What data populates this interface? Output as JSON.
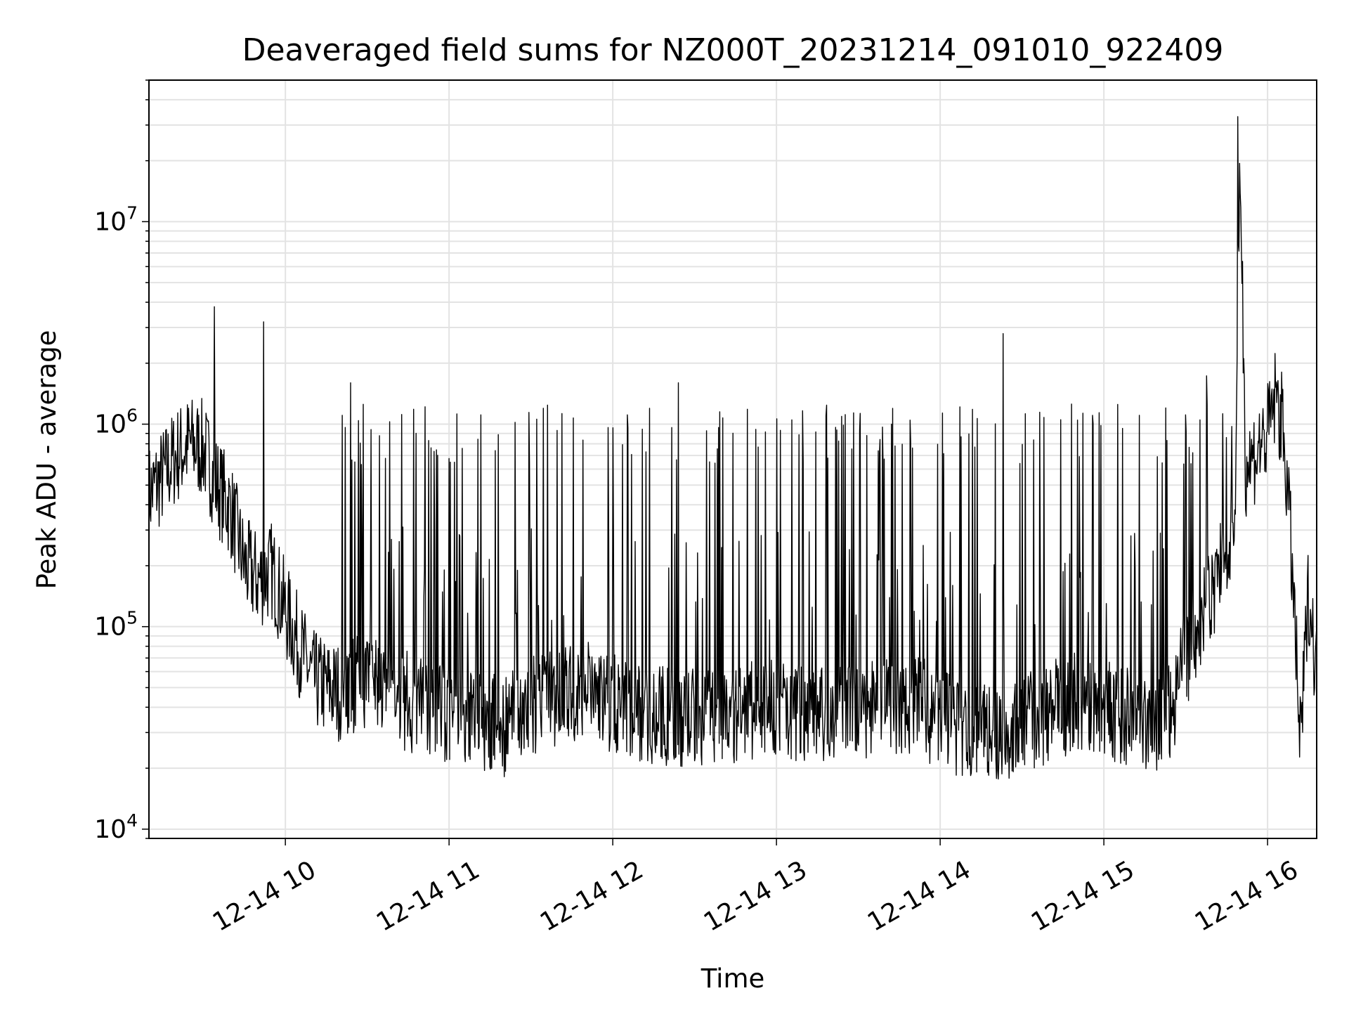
{
  "chart_data": {
    "type": "line",
    "title": "Deaveraged field sums for NZ000T_20231214_091010_922409",
    "xlabel": "Time",
    "ylabel": "Peak ADU - average",
    "xscale": "time",
    "yscale": "log",
    "xlim": [
      "12-14 09:10",
      "12-14 16:18"
    ],
    "ylim": [
      9000,
      50000000
    ],
    "grid": true,
    "line_color": "#000000",
    "x_ticks": [
      "12-14 10",
      "12-14 11",
      "12-14 12",
      "12-14 13",
      "12-14 14",
      "12-14 15",
      "12-14 16"
    ],
    "y_ticks": [
      {
        "base": "10",
        "exp": "4"
      },
      {
        "base": "10",
        "exp": "5"
      },
      {
        "base": "10",
        "exp": "6"
      },
      {
        "base": "10",
        "exp": "7"
      }
    ],
    "series": [
      {
        "x": [
          "12-14 09:10",
          "12-14 09:15",
          "12-14 09:20",
          "12-14 09:25",
          "12-14 09:30",
          "12-14 09:35",
          "12-14 09:40",
          "12-14 09:45",
          "12-14 09:50",
          "12-14 09:55",
          "12-14 10:00",
          "12-14 10:05",
          "12-14 10:10",
          "12-14 10:15",
          "12-14 10:20",
          "12-14 10:30",
          "12-14 10:40",
          "12-14 10:50",
          "12-14 11:00",
          "12-14 11:10",
          "12-14 11:20",
          "12-14 11:30",
          "12-14 11:40",
          "12-14 11:50",
          "12-14 12:00",
          "12-14 12:10",
          "12-14 12:20",
          "12-14 12:30",
          "12-14 12:40",
          "12-14 12:50",
          "12-14 13:00",
          "12-14 13:10",
          "12-14 13:20",
          "12-14 13:30",
          "12-14 13:40",
          "12-14 13:50",
          "12-14 14:00",
          "12-14 14:10",
          "12-14 14:20",
          "12-14 14:30",
          "12-14 14:40",
          "12-14 14:50",
          "12-14 15:00",
          "12-14 15:10",
          "12-14 15:20",
          "12-14 15:25",
          "12-14 15:30",
          "12-14 15:35",
          "12-14 15:40",
          "12-14 15:45",
          "12-14 15:48",
          "12-14 15:50",
          "12-14 15:52",
          "12-14 15:55",
          "12-14 16:00",
          "12-14 16:03",
          "12-14 16:06",
          "12-14 16:09",
          "12-14 16:12",
          "12-14 16:15",
          "12-14 16:18"
        ],
        "values": [
          450000,
          550000,
          700000,
          800000,
          750000,
          500000,
          380000,
          200000,
          170000,
          190000,
          120000,
          80000,
          55000,
          50000,
          48000,
          55000,
          45000,
          40000,
          38000,
          35000,
          32000,
          40000,
          45000,
          50000,
          42000,
          38000,
          36000,
          35000,
          35000,
          38000,
          40000,
          38000,
          36000,
          38000,
          40000,
          42000,
          35000,
          30000,
          30000,
          32000,
          38000,
          42000,
          40000,
          35000,
          32000,
          40000,
          70000,
          100000,
          150000,
          250000,
          400000,
          18000000,
          600000,
          700000,
          900000,
          1400000,
          900000,
          200000,
          25000,
          150000,
          60000
        ]
      }
    ],
    "spikes": [
      {
        "x": "12-14 09:34",
        "value": 3800000
      },
      {
        "x": "12-14 09:52",
        "value": 3200000
      },
      {
        "x": "12-14 10:24",
        "value": 1600000
      },
      {
        "x": "12-14 12:24",
        "value": 1600000
      },
      {
        "x": "12-14 14:23",
        "value": 2800000
      },
      {
        "x": "12-14 15:49",
        "value": 33000000
      }
    ]
  }
}
